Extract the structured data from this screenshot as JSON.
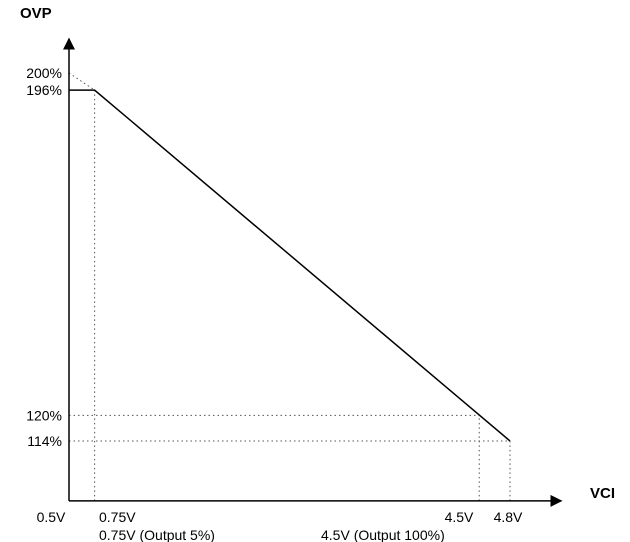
{
  "chart_data": {
    "type": "line",
    "title": "",
    "xlabel": "VCI",
    "ylabel": "OVP",
    "xlim": [
      0.5,
      5.3
    ],
    "ylim": [
      100,
      208
    ],
    "series": [
      {
        "name": "",
        "x": [
          0.5,
          0.75,
          4.8
        ],
        "y": [
          196,
          196,
          114
        ]
      }
    ],
    "extrapolation": {
      "x": [
        0.5,
        0.75
      ],
      "y": [
        200,
        196
      ],
      "style": "dotted"
    },
    "x_ticks": [
      {
        "value": 0.5,
        "label": "0.5V",
        "sublabel": ""
      },
      {
        "value": 0.75,
        "label": "0.75V",
        "sublabel": "0.75V (Output 5%)"
      },
      {
        "value": 4.5,
        "label": "4.5V",
        "sublabel": "4.5V (Output 100%)"
      },
      {
        "value": 4.8,
        "label": "4.8V",
        "sublabel": ""
      }
    ],
    "y_ticks": [
      {
        "value": 200,
        "label": "200%"
      },
      {
        "value": 196,
        "label": "196%"
      },
      {
        "value": 120,
        "label": "120%"
      },
      {
        "value": 114,
        "label": "114%"
      }
    ],
    "guides": [
      {
        "axis": "x",
        "value": 0.75,
        "to_y": 196
      },
      {
        "axis": "x",
        "value": 4.5,
        "to_y": 120
      },
      {
        "axis": "x",
        "value": 4.8,
        "to_y": 114
      },
      {
        "axis": "y",
        "value": 120,
        "to_x": 4.5
      },
      {
        "axis": "y",
        "value": 114,
        "to_x": 4.8
      }
    ],
    "grid": false,
    "legend": "none",
    "colors": {
      "line": "#000000",
      "axis": "#000000",
      "guide": "#555555"
    }
  }
}
